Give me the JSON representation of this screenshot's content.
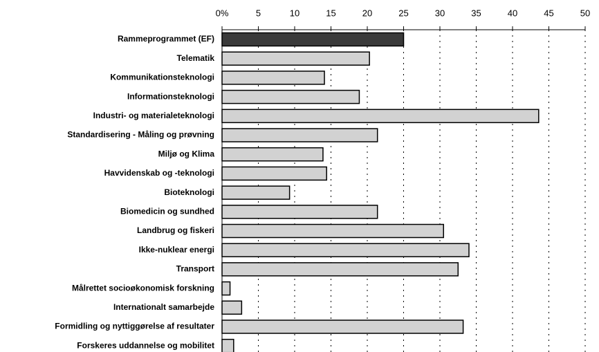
{
  "chart_data": {
    "type": "barh",
    "categories": [
      "Rammeprogrammet (EF)",
      "Telematik",
      "Kommunikationsteknologi",
      "Informationsteknologi",
      "Industri- og materialeteknologi",
      "Standardisering - Måling og prøvning",
      "Miljø og Klima",
      "Havvidenskab og -teknologi",
      "Bioteknologi",
      "Biomedicin og sundhed",
      "Landbrug og fiskeri",
      "Ikke-nuklear energi",
      "Transport",
      "Målrettet socioøkonomisk forskning",
      "Internationalt samarbejde",
      "Formidling og nyttiggørelse af resultater",
      "Forskeres uddannelse og mobilitet"
    ],
    "values": [
      25,
      20.3,
      14.1,
      18.9,
      43.6,
      21.4,
      13.9,
      14.4,
      9.3,
      21.4,
      30.5,
      34,
      32.5,
      1.1,
      2.7,
      33.2,
      1.6
    ],
    "colors": [
      "#3a3a3a",
      "#d2d2d2",
      "#d2d2d2",
      "#d2d2d2",
      "#d2d2d2",
      "#d2d2d2",
      "#d2d2d2",
      "#d2d2d2",
      "#d2d2d2",
      "#d2d2d2",
      "#d2d2d2",
      "#d2d2d2",
      "#d2d2d2",
      "#d2d2d2",
      "#d2d2d2",
      "#d2d2d2",
      "#d2d2d2"
    ],
    "xlim": [
      0,
      50
    ],
    "xticks": [
      {
        "value": 0,
        "label": "0%"
      },
      5,
      10,
      15,
      20,
      25,
      30,
      35,
      40,
      45,
      50
    ],
    "grid": true
  }
}
